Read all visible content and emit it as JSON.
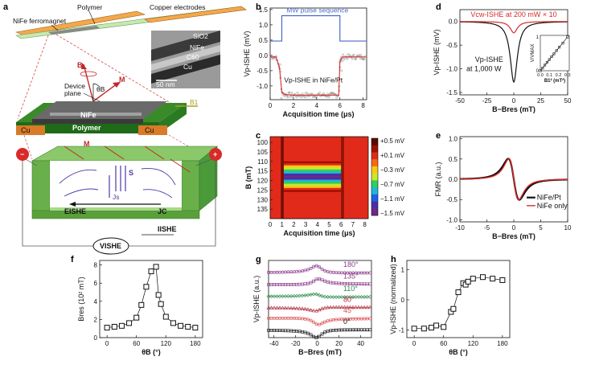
{
  "panel_labels": [
    "a",
    "b",
    "c",
    "d",
    "e",
    "f",
    "g",
    "h"
  ],
  "panel_a": {
    "polymer": "Polymer",
    "copper": "Copper electrodes",
    "nife_ferro": "NiFe ferromagnet",
    "tem_sio2": "SiO2",
    "tem_nife": "NiFe",
    "tem_c60": "C60",
    "tem_cu": "Cu",
    "scale": "50 nm",
    "b": "B",
    "m": "M",
    "theta": "θB",
    "device_plane": "Device",
    "device_plane2": "plane",
    "b1": "B1",
    "nife": "NiFe",
    "polymer2": "Polymer",
    "cu_left": "Cu",
    "cu_right": "Cu",
    "m2": "M",
    "s": "S",
    "js": "Js",
    "eishe": "EISHE",
    "jc": "JC",
    "iishe": "IISHE",
    "vishe": "VISHE",
    "minus": "−",
    "plus": "+"
  },
  "chart_data": [
    {
      "panel": "b",
      "type": "line",
      "annotation_pulse": "MW pulse sequence",
      "annotation_trace": "Vp-ISHE in NiFe/Pt",
      "xlabel": "Acquisition time (μs)",
      "ylabel": "Vp-ISHE (mV)",
      "xlim": [
        0,
        8.3
      ],
      "ylim": [
        -1.45,
        1.55
      ],
      "xticks": [
        0,
        2,
        4,
        6,
        8
      ],
      "yticks": [
        1.5,
        1.0,
        0.5,
        0.0,
        -0.5,
        -1.0
      ],
      "pulse": {
        "x": [
          0,
          1,
          1,
          6,
          6,
          8.3
        ],
        "y": [
          0.47,
          0.47,
          1.3,
          1.3,
          0.47,
          0.47
        ]
      },
      "trace": {
        "x": [
          0,
          0.5,
          0.8,
          1.0,
          1.2,
          2,
          3,
          4,
          5,
          5.9,
          6.0,
          6.2,
          6.5,
          7,
          8.2
        ],
        "y": [
          -0.05,
          -0.05,
          -0.4,
          -1.2,
          -1.28,
          -1.3,
          -1.3,
          -1.3,
          -1.3,
          -1.3,
          -0.2,
          -0.05,
          -0.05,
          -0.05,
          -0.05
        ]
      }
    },
    {
      "panel": "c",
      "type": "heatmap",
      "xlabel": "Acquisition time (μs)",
      "ylabel": "B (mT)",
      "xlim": [
        0,
        8.3
      ],
      "ylim": [
        97,
        140
      ],
      "xticks": [
        0,
        1,
        2,
        3,
        4,
        5,
        6,
        7,
        8
      ],
      "yticks": [
        100,
        105,
        110,
        115,
        120,
        125,
        130,
        135
      ],
      "colorbar_labels": [
        "+0.5 mV",
        "+0.1 mV",
        "−0.3 mV",
        "−0.7 mV",
        "−1.1 mV",
        "−1.5 mV"
      ],
      "colorbar_colors": [
        "#5a0a00",
        "#a01000",
        "#e22a1a",
        "#f46a10",
        "#f9c718",
        "#c8e82e",
        "#2fcf5a",
        "#20b6d8",
        "#2060e8",
        "#4a2ca8",
        "#6a2a8a"
      ],
      "pulse_on": 1,
      "pulse_off": 6,
      "resonance": 118
    },
    {
      "panel": "d",
      "type": "line",
      "annotation_cw": "Vcw-ISHE at 200 mW × 10",
      "annotation_p": "Vp-ISHE",
      "annotation_p2": "at 1,000 W",
      "xlabel": "B−Bres (mT)",
      "ylabel": "Vp-ISHE (mV)",
      "xlim": [
        -50,
        50
      ],
      "ylim": [
        -1.55,
        0.25
      ],
      "xticks": [
        -50,
        -25,
        0,
        25,
        50
      ],
      "yticks": [
        0.0,
        -0.5,
        -1.0,
        -1.5
      ],
      "inset": {
        "xlabel": "B1² (mT²)",
        "ylabel": "V/VMAX",
        "x": [
          0.0,
          0.025,
          0.05,
          0.075,
          0.1,
          0.125,
          0.15,
          0.18,
          0.21,
          0.25,
          0.3
        ],
        "y": [
          0.0,
          0.08,
          0.17,
          0.25,
          0.33,
          0.42,
          0.5,
          0.6,
          0.7,
          0.82,
          1.0
        ],
        "xticks": [
          0.0,
          0.1,
          0.2,
          0.3
        ],
        "yticks": [
          1,
          0
        ]
      }
    },
    {
      "panel": "e",
      "type": "line",
      "xlabel": "B−Bres (mT)",
      "ylabel": "FMR (a.u.)",
      "xlim": [
        -10,
        10
      ],
      "ylim": [
        -1.05,
        1.05
      ],
      "xticks": [
        -10,
        -5,
        0,
        5,
        10
      ],
      "yticks": [
        1.0,
        0.5,
        0.0,
        -0.5,
        -1.0
      ],
      "series": [
        {
          "name": "NiFe/Pt",
          "color": "#111111",
          "width": 2.2
        },
        {
          "name": "NiFe only",
          "color": "#d92a2a",
          "width": 1.4
        }
      ]
    },
    {
      "panel": "f",
      "type": "scatter",
      "xlabel": "θB (°)",
      "ylabel": "Bres (10² mT)",
      "xlim": [
        -15,
        195
      ],
      "ylim": [
        0,
        8.5
      ],
      "xticks": [
        0,
        60,
        120,
        180
      ],
      "yticks": [
        0,
        2,
        4,
        6,
        8
      ],
      "x": [
        0,
        15,
        30,
        45,
        60,
        70,
        80,
        90,
        100,
        105,
        110,
        120,
        135,
        150,
        165,
        180
      ],
      "y": [
        1.1,
        1.2,
        1.3,
        1.6,
        2.2,
        3.6,
        5.6,
        7.3,
        7.8,
        4.7,
        3.7,
        2.3,
        1.6,
        1.3,
        1.2,
        1.1
      ]
    },
    {
      "panel": "g",
      "type": "line",
      "xlabel": "B−Bres (mT)",
      "ylabel": "Vp-ISHE (a.u.)",
      "xlim": [
        -45,
        50
      ],
      "ylim": [
        0,
        10
      ],
      "xticks": [
        -40,
        -20,
        0,
        20,
        40
      ],
      "series": [
        {
          "name": "180°",
          "offset": 8.4,
          "amp": 0.9,
          "color": "#8a3a8a",
          "marker": "circle"
        },
        {
          "name": "135°",
          "offset": 6.9,
          "amp": 0.7,
          "color": "#8a3a8a",
          "marker": "square"
        },
        {
          "name": "110°",
          "offset": 5.3,
          "amp": 0.3,
          "color": "#2a8a4a",
          "marker": "diamond"
        },
        {
          "name": "80°",
          "offset": 3.9,
          "amp": -0.4,
          "color": "#b02a3a",
          "marker": "triangle"
        },
        {
          "name": "45°",
          "offset": 2.5,
          "amp": -0.8,
          "color": "#d94a4a",
          "marker": "circle"
        },
        {
          "name": "0°",
          "offset": 1.0,
          "amp": -1.0,
          "color": "#111111",
          "marker": "square"
        }
      ]
    },
    {
      "panel": "h",
      "type": "scatter",
      "xlabel": "θB (°)",
      "ylabel": "Vp-ISHE (normalized)",
      "xlim": [
        -15,
        195
      ],
      "ylim": [
        -1.25,
        1.3
      ],
      "xticks": [
        0,
        60,
        120,
        180
      ],
      "yticks": [
        1,
        0,
        -1
      ],
      "x": [
        0,
        20,
        35,
        45,
        60,
        75,
        80,
        90,
        100,
        105,
        110,
        120,
        140,
        160,
        180
      ],
      "y": [
        -0.95,
        -0.95,
        -0.92,
        -0.85,
        -0.9,
        -0.4,
        -0.3,
        0.25,
        0.55,
        0.5,
        0.6,
        0.7,
        0.75,
        0.7,
        0.65
      ]
    }
  ]
}
